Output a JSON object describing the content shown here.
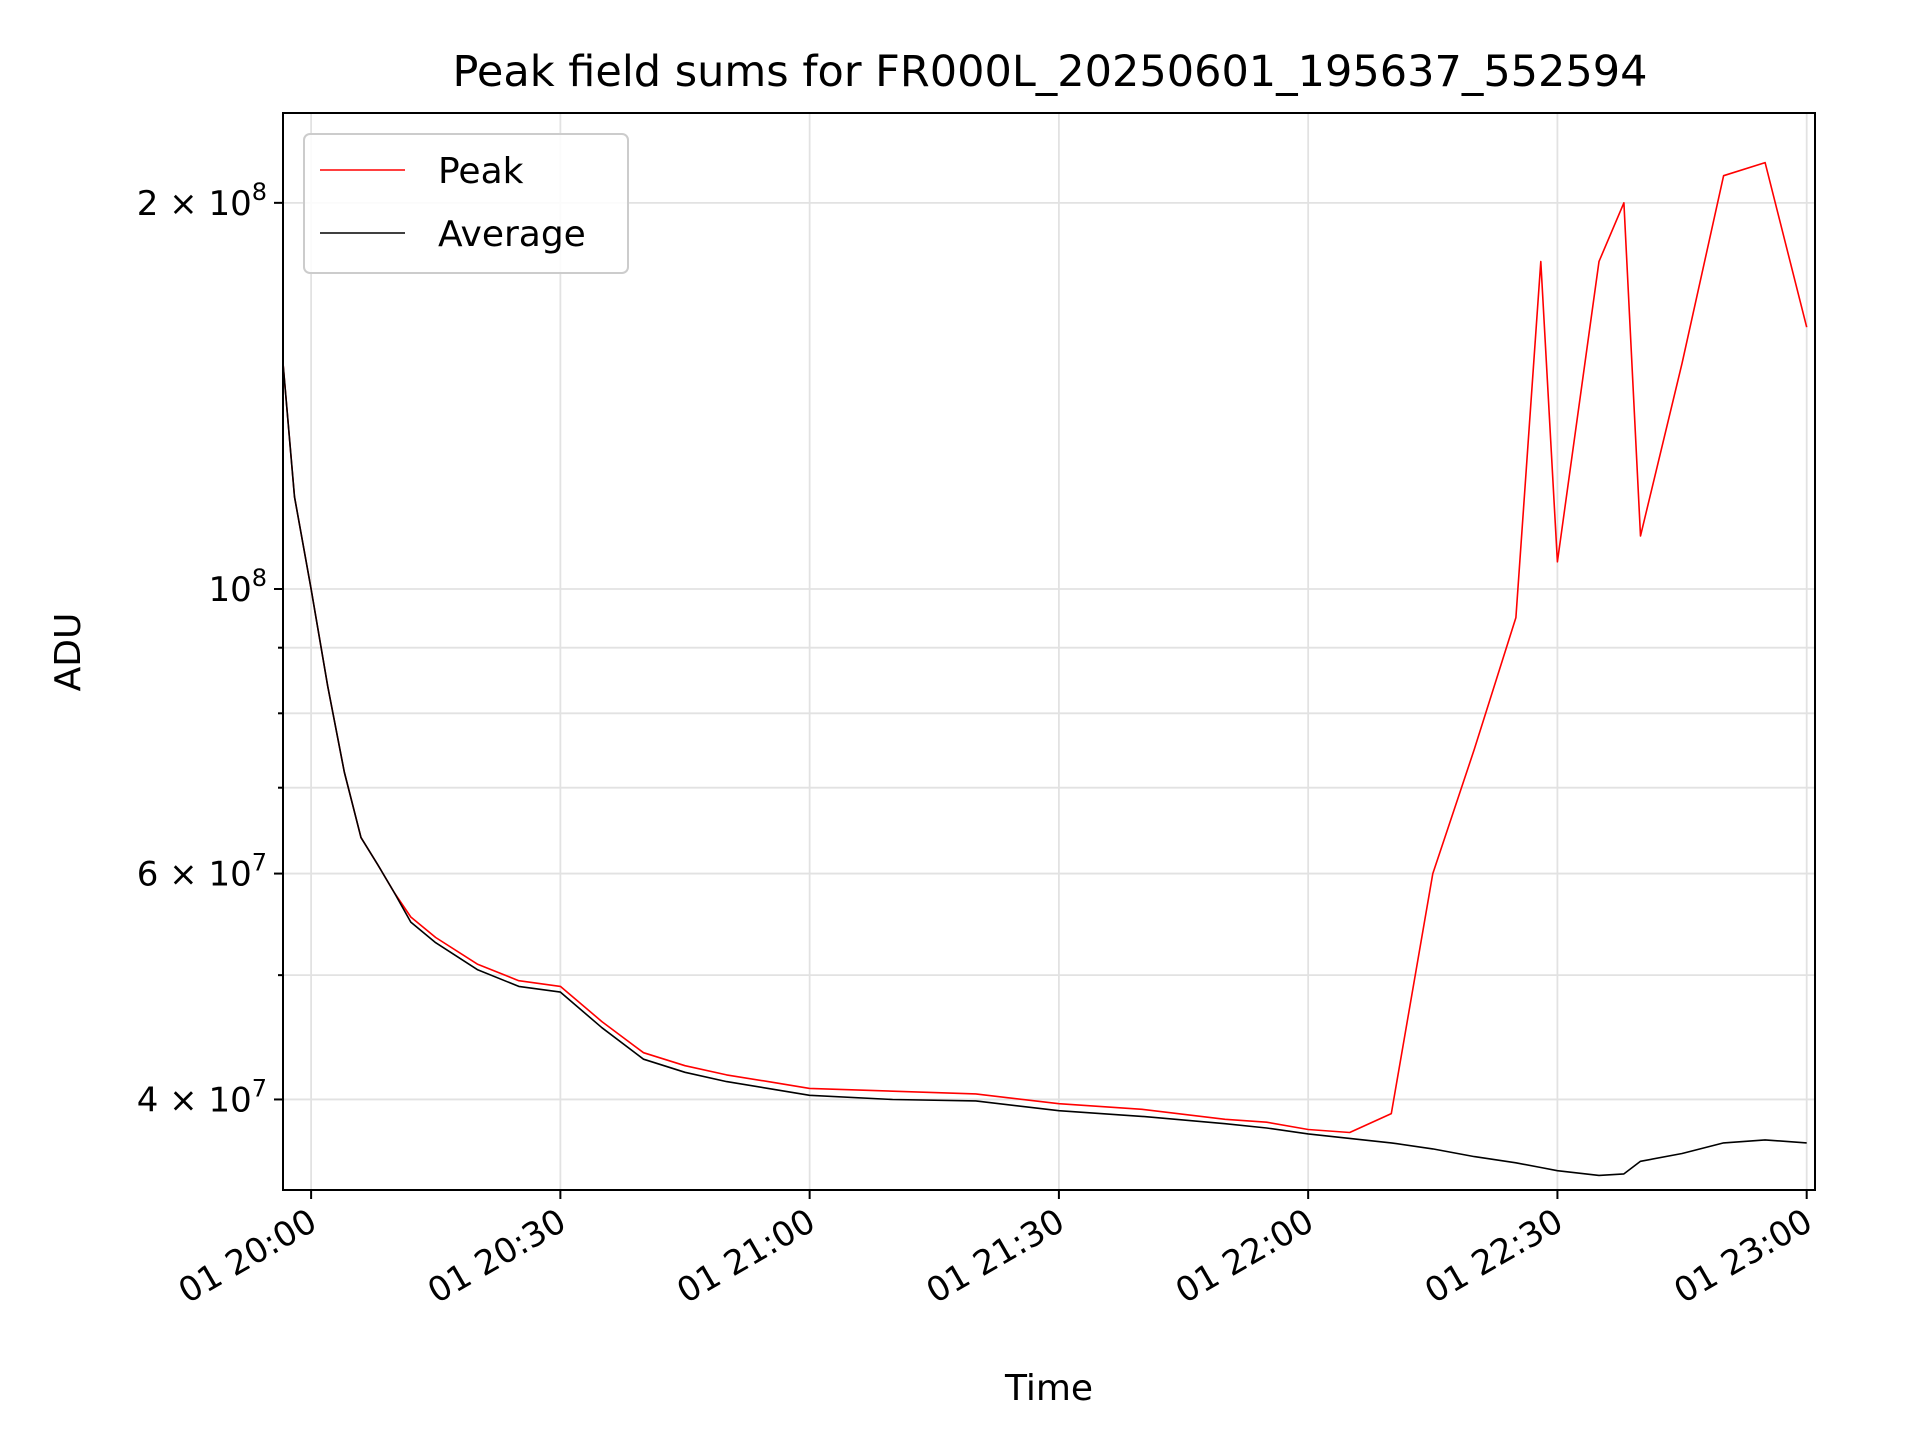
{
  "chart_data": {
    "type": "line",
    "title": "Peak field sums for FR000L_20250601_195637_552594",
    "xlabel": "Time",
    "ylabel": "ADU",
    "y_scale": "log",
    "xlim": [
      "2025-06-01T19:56:37",
      "2025-06-01T23:01:00"
    ],
    "ylim": [
      34000000,
      235000000
    ],
    "grid": true,
    "legend_position": "upper-left",
    "x_ticks": [
      "2025-06-01T20:00:00",
      "2025-06-01T20:30:00",
      "2025-06-01T21:00:00",
      "2025-06-01T21:30:00",
      "2025-06-01T22:00:00",
      "2025-06-01T22:30:00",
      "2025-06-01T23:00:00"
    ],
    "x_tick_labels": [
      "01 20:00",
      "01 20:30",
      "01 21:00",
      "01 21:30",
      "01 22:00",
      "01 22:30",
      "01 23:00"
    ],
    "y_major_ticks": [
      {
        "value": 40000000,
        "mantissa": "4",
        "base": "10",
        "exp": "7"
      },
      {
        "value": 60000000,
        "mantissa": "6",
        "base": "10",
        "exp": "7"
      },
      {
        "value": 100000000,
        "mantissa": "",
        "base": "10",
        "exp": "8"
      },
      {
        "value": 200000000,
        "mantissa": "2",
        "base": "10",
        "exp": "8"
      }
    ],
    "y_minor_ticks": [
      50000000,
      70000000,
      80000000,
      90000000
    ],
    "series": [
      {
        "name": "Peak",
        "color": "#ff0000",
        "x": [
          "2025-06-01T19:56:37",
          "2025-06-01T19:58:00",
          "2025-06-01T20:00:00",
          "2025-06-01T20:02:00",
          "2025-06-01T20:04:00",
          "2025-06-01T20:06:00",
          "2025-06-01T20:08:00",
          "2025-06-01T20:10:00",
          "2025-06-01T20:12:00",
          "2025-06-01T20:15:00",
          "2025-06-01T20:20:00",
          "2025-06-01T20:25:00",
          "2025-06-01T20:30:00",
          "2025-06-01T20:35:00",
          "2025-06-01T20:40:00",
          "2025-06-01T20:45:00",
          "2025-06-01T20:50:00",
          "2025-06-01T20:55:00",
          "2025-06-01T21:00:00",
          "2025-06-01T21:10:00",
          "2025-06-01T21:20:00",
          "2025-06-01T21:30:00",
          "2025-06-01T21:40:00",
          "2025-06-01T21:50:00",
          "2025-06-01T21:55:00",
          "2025-06-01T22:00:00",
          "2025-06-01T22:05:00",
          "2025-06-01T22:10:00",
          "2025-06-01T22:15:00",
          "2025-06-01T22:20:00",
          "2025-06-01T22:25:00",
          "2025-06-01T22:28:00",
          "2025-06-01T22:30:00",
          "2025-06-01T22:35:00",
          "2025-06-01T22:38:00",
          "2025-06-01T22:40:00",
          "2025-06-01T22:45:00",
          "2025-06-01T22:50:00",
          "2025-06-01T22:55:00",
          "2025-06-01T23:00:00"
        ],
        "values": [
          150000000,
          118000000,
          100000000,
          84000000,
          72000000,
          64000000,
          61000000,
          58000000,
          55500000,
          53500000,
          51000000,
          49500000,
          49000000,
          46000000,
          43500000,
          42500000,
          41800000,
          41300000,
          40800000,
          40600000,
          40400000,
          39700000,
          39300000,
          38600000,
          38400000,
          37900000,
          37700000,
          39000000,
          60000000,
          75000000,
          95000000,
          180000000,
          105000000,
          180000000,
          200000000,
          110000000,
          150000000,
          210000000,
          215000000,
          160000000
        ]
      },
      {
        "name": "Average",
        "color": "#000000",
        "x": [
          "2025-06-01T19:56:37",
          "2025-06-01T19:58:00",
          "2025-06-01T20:00:00",
          "2025-06-01T20:02:00",
          "2025-06-01T20:04:00",
          "2025-06-01T20:06:00",
          "2025-06-01T20:08:00",
          "2025-06-01T20:10:00",
          "2025-06-01T20:12:00",
          "2025-06-01T20:15:00",
          "2025-06-01T20:20:00",
          "2025-06-01T20:25:00",
          "2025-06-01T20:30:00",
          "2025-06-01T20:35:00",
          "2025-06-01T20:40:00",
          "2025-06-01T20:45:00",
          "2025-06-01T20:50:00",
          "2025-06-01T20:55:00",
          "2025-06-01T21:00:00",
          "2025-06-01T21:10:00",
          "2025-06-01T21:20:00",
          "2025-06-01T21:30:00",
          "2025-06-01T21:40:00",
          "2025-06-01T21:50:00",
          "2025-06-01T21:55:00",
          "2025-06-01T22:00:00",
          "2025-06-01T22:05:00",
          "2025-06-01T22:10:00",
          "2025-06-01T22:15:00",
          "2025-06-01T22:20:00",
          "2025-06-01T22:25:00",
          "2025-06-01T22:28:00",
          "2025-06-01T22:30:00",
          "2025-06-01T22:35:00",
          "2025-06-01T22:38:00",
          "2025-06-01T22:40:00",
          "2025-06-01T22:45:00",
          "2025-06-01T22:50:00",
          "2025-06-01T22:55:00",
          "2025-06-01T23:00:00"
        ],
        "values": [
          150000000,
          118000000,
          100000000,
          84000000,
          72000000,
          64000000,
          61000000,
          58000000,
          55000000,
          53000000,
          50500000,
          49000000,
          48500000,
          45500000,
          43000000,
          42000000,
          41300000,
          40800000,
          40300000,
          40000000,
          39900000,
          39200000,
          38800000,
          38300000,
          38000000,
          37600000,
          37300000,
          37000000,
          36600000,
          36100000,
          35700000,
          35400000,
          35200000,
          34900000,
          35000000,
          35800000,
          36300000,
          37000000,
          37200000,
          37000000
        ]
      }
    ]
  }
}
